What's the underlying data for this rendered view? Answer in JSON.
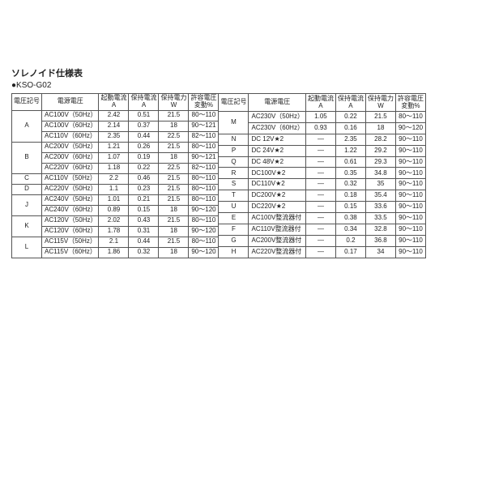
{
  "title": "ソレノイド仕様表",
  "subtitle": "●KSO-G02",
  "headers": {
    "code": "電圧記号",
    "volt": "電源電圧",
    "startA_l1": "起動電流",
    "startA_l2": "A",
    "holdA_l1": "保持電流",
    "holdA_l2": "A",
    "holdW_l1": "保持電力",
    "holdW_l2": "W",
    "pct_l1": "許容電圧",
    "pct_l2": "変動%"
  },
  "left": [
    {
      "code": "A",
      "volt": "AC100V（50Hz）",
      "a1": "2.42",
      "a2": "0.51",
      "w": "21.5",
      "p": "80～110"
    },
    {
      "code": "",
      "volt": "AC100V（60Hz）",
      "a1": "2.14",
      "a2": "0.37",
      "w": "18",
      "p": "90～121"
    },
    {
      "code": "",
      "volt": "AC110V（60Hz）",
      "a1": "2.35",
      "a2": "0.44",
      "w": "22.5",
      "p": "82～110"
    },
    {
      "code": "B",
      "volt": "AC200V（50Hz）",
      "a1": "1.21",
      "a2": "0.26",
      "w": "21.5",
      "p": "80～110"
    },
    {
      "code": "",
      "volt": "AC200V（60Hz）",
      "a1": "1.07",
      "a2": "0.19",
      "w": "18",
      "p": "90～121"
    },
    {
      "code": "",
      "volt": "AC220V（60Hz）",
      "a1": "1.18",
      "a2": "0.22",
      "w": "22.5",
      "p": "82～110"
    },
    {
      "code": "C",
      "volt": "AC110V（50Hz）",
      "a1": "2.2",
      "a2": "0.46",
      "w": "21.5",
      "p": "80～110"
    },
    {
      "code": "D",
      "volt": "AC220V（50Hz）",
      "a1": "1.1",
      "a2": "0.23",
      "w": "21.5",
      "p": "80～110"
    },
    {
      "code": "J",
      "volt": "AC240V（50Hz）",
      "a1": "1.01",
      "a2": "0.21",
      "w": "21.5",
      "p": "80～110"
    },
    {
      "code": "",
      "volt": "AC240V（60Hz）",
      "a1": "0.89",
      "a2": "0.15",
      "w": "18",
      "p": "90～120"
    },
    {
      "code": "K",
      "volt": "AC120V（50Hz）",
      "a1": "2.02",
      "a2": "0.43",
      "w": "21.5",
      "p": "80～110"
    },
    {
      "code": "",
      "volt": "AC120V（60Hz）",
      "a1": "1.78",
      "a2": "0.31",
      "w": "18",
      "p": "90～120"
    },
    {
      "code": "L",
      "volt": "AC115V（50Hz）",
      "a1": "2.1",
      "a2": "0.44",
      "w": "21.5",
      "p": "80～110"
    },
    {
      "code": "",
      "volt": "AC115V（60Hz）",
      "a1": "1.86",
      "a2": "0.32",
      "w": "18",
      "p": "90～120"
    }
  ],
  "leftGroups": [
    {
      "start": 0,
      "span": 3,
      "code": "A"
    },
    {
      "start": 3,
      "span": 3,
      "code": "B"
    },
    {
      "start": 6,
      "span": 1,
      "code": "C"
    },
    {
      "start": 7,
      "span": 1,
      "code": "D"
    },
    {
      "start": 8,
      "span": 2,
      "code": "J"
    },
    {
      "start": 10,
      "span": 2,
      "code": "K"
    },
    {
      "start": 12,
      "span": 2,
      "code": "L"
    }
  ],
  "right": [
    {
      "code": "M",
      "volt": "AC230V（50Hz）",
      "a1": "1.05",
      "a2": "0.22",
      "w": "21.5",
      "p": "80～110"
    },
    {
      "code": "",
      "volt": "AC230V（60Hz）",
      "a1": "0.93",
      "a2": "0.16",
      "w": "18",
      "p": "90～120"
    },
    {
      "code": "N",
      "volt": "DC 12V★2",
      "a1": "—",
      "a2": "2.35",
      "w": "28.2",
      "p": "90～110"
    },
    {
      "code": "P",
      "volt": "DC 24V★2",
      "a1": "—",
      "a2": "1.22",
      "w": "29.2",
      "p": "90～110"
    },
    {
      "code": "Q",
      "volt": "DC 48V★2",
      "a1": "—",
      "a2": "0.61",
      "w": "29.3",
      "p": "90～110"
    },
    {
      "code": "R",
      "volt": "DC100V★2",
      "a1": "—",
      "a2": "0.35",
      "w": "34.8",
      "p": "90～110"
    },
    {
      "code": "S",
      "volt": "DC110V★2",
      "a1": "—",
      "a2": "0.32",
      "w": "35",
      "p": "90～110"
    },
    {
      "code": "T",
      "volt": "DC200V★2",
      "a1": "—",
      "a2": "0.18",
      "w": "35.4",
      "p": "90～110"
    },
    {
      "code": "U",
      "volt": "DC220V★2",
      "a1": "—",
      "a2": "0.15",
      "w": "33.6",
      "p": "90～110"
    },
    {
      "code": "E",
      "volt": "AC100V整流器付",
      "a1": "—",
      "a2": "0.38",
      "w": "33.5",
      "p": "90～110"
    },
    {
      "code": "F",
      "volt": "AC110V整流器付",
      "a1": "—",
      "a2": "0.34",
      "w": "32.8",
      "p": "90～110"
    },
    {
      "code": "G",
      "volt": "AC200V整流器付",
      "a1": "—",
      "a2": "0.2",
      "w": "36.8",
      "p": "90～110"
    },
    {
      "code": "H",
      "volt": "AC220V整流器付",
      "a1": "—",
      "a2": "0.17",
      "w": "34",
      "p": "90～110"
    }
  ],
  "rightGroups": [
    {
      "start": 0,
      "span": 2,
      "code": "M"
    },
    {
      "start": 2,
      "span": 1,
      "code": "N"
    },
    {
      "start": 3,
      "span": 1,
      "code": "P"
    },
    {
      "start": 4,
      "span": 1,
      "code": "Q"
    },
    {
      "start": 5,
      "span": 1,
      "code": "R"
    },
    {
      "start": 6,
      "span": 1,
      "code": "S"
    },
    {
      "start": 7,
      "span": 1,
      "code": "T"
    },
    {
      "start": 8,
      "span": 1,
      "code": "U"
    },
    {
      "start": 9,
      "span": 1,
      "code": "E"
    },
    {
      "start": 10,
      "span": 1,
      "code": "F"
    },
    {
      "start": 11,
      "span": 1,
      "code": "G"
    },
    {
      "start": 12,
      "span": 1,
      "code": "H"
    }
  ]
}
